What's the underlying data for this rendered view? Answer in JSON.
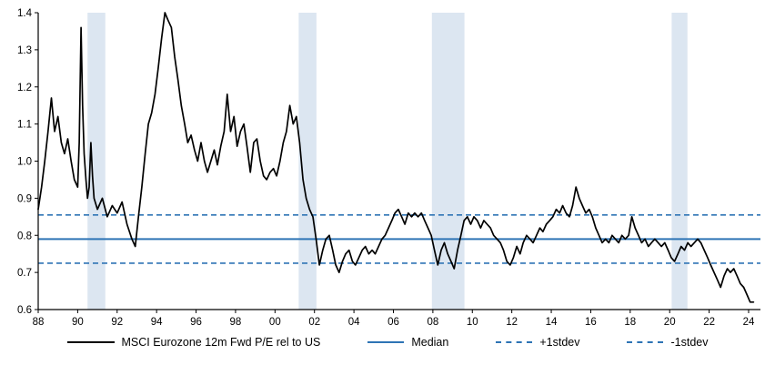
{
  "chart_data": {
    "type": "line",
    "x_range": [
      1988,
      2024.6
    ],
    "y_range": [
      0.6,
      1.4
    ],
    "x_ticks": {
      "values": [
        1988,
        1990,
        1992,
        1994,
        1996,
        1998,
        2000,
        2002,
        2004,
        2006,
        2008,
        2010,
        2012,
        2014,
        2016,
        2018,
        2020,
        2022,
        2024
      ],
      "labels": [
        "88",
        "90",
        "92",
        "94",
        "96",
        "98",
        "00",
        "02",
        "04",
        "06",
        "08",
        "10",
        "12",
        "14",
        "16",
        "18",
        "20",
        "22",
        "24"
      ]
    },
    "y_ticks": {
      "values": [
        0.6,
        0.7,
        0.8,
        0.9,
        1.0,
        1.1,
        1.2,
        1.3,
        1.4
      ],
      "labels": [
        "0.6",
        "0.7",
        "0.8",
        "0.9",
        "1.0",
        "1.1",
        "1.2",
        "1.3",
        "1.4"
      ]
    },
    "series": [
      {
        "name": "MSCI Eurozone 12m Fwd P/E rel to US",
        "color": "#000000",
        "style": "solid",
        "points": [
          [
            1988.0,
            0.87
          ],
          [
            1988.17,
            0.93
          ],
          [
            1988.33,
            1.0
          ],
          [
            1988.5,
            1.08
          ],
          [
            1988.67,
            1.17
          ],
          [
            1988.83,
            1.08
          ],
          [
            1989.0,
            1.12
          ],
          [
            1989.17,
            1.05
          ],
          [
            1989.33,
            1.02
          ],
          [
            1989.5,
            1.06
          ],
          [
            1989.67,
            1.0
          ],
          [
            1989.83,
            0.95
          ],
          [
            1990.0,
            0.93
          ],
          [
            1990.08,
            1.05
          ],
          [
            1990.17,
            1.36
          ],
          [
            1990.25,
            1.15
          ],
          [
            1990.33,
            1.02
          ],
          [
            1990.42,
            0.95
          ],
          [
            1990.5,
            0.9
          ],
          [
            1990.58,
            0.93
          ],
          [
            1990.67,
            1.05
          ],
          [
            1990.75,
            0.96
          ],
          [
            1990.83,
            0.9
          ],
          [
            1991.0,
            0.87
          ],
          [
            1991.25,
            0.9
          ],
          [
            1991.5,
            0.85
          ],
          [
            1991.75,
            0.88
          ],
          [
            1992.0,
            0.86
          ],
          [
            1992.25,
            0.89
          ],
          [
            1992.5,
            0.83
          ],
          [
            1992.75,
            0.79
          ],
          [
            1992.92,
            0.77
          ],
          [
            1993.08,
            0.85
          ],
          [
            1993.25,
            0.93
          ],
          [
            1993.42,
            1.02
          ],
          [
            1993.58,
            1.1
          ],
          [
            1993.75,
            1.13
          ],
          [
            1993.92,
            1.18
          ],
          [
            1994.08,
            1.25
          ],
          [
            1994.25,
            1.33
          ],
          [
            1994.42,
            1.4
          ],
          [
            1994.58,
            1.38
          ],
          [
            1994.75,
            1.36
          ],
          [
            1994.92,
            1.28
          ],
          [
            1995.08,
            1.22
          ],
          [
            1995.25,
            1.15
          ],
          [
            1995.42,
            1.1
          ],
          [
            1995.58,
            1.05
          ],
          [
            1995.75,
            1.07
          ],
          [
            1995.92,
            1.03
          ],
          [
            1996.08,
            1.0
          ],
          [
            1996.25,
            1.05
          ],
          [
            1996.42,
            1.0
          ],
          [
            1996.58,
            0.97
          ],
          [
            1996.75,
            1.0
          ],
          [
            1996.92,
            1.03
          ],
          [
            1997.08,
            0.99
          ],
          [
            1997.25,
            1.04
          ],
          [
            1997.42,
            1.08
          ],
          [
            1997.58,
            1.18
          ],
          [
            1997.75,
            1.08
          ],
          [
            1997.92,
            1.12
          ],
          [
            1998.08,
            1.04
          ],
          [
            1998.25,
            1.08
          ],
          [
            1998.42,
            1.1
          ],
          [
            1998.58,
            1.04
          ],
          [
            1998.75,
            0.97
          ],
          [
            1998.92,
            1.05
          ],
          [
            1999.08,
            1.06
          ],
          [
            1999.25,
            1.0
          ],
          [
            1999.42,
            0.96
          ],
          [
            1999.58,
            0.95
          ],
          [
            1999.75,
            0.97
          ],
          [
            1999.92,
            0.98
          ],
          [
            2000.08,
            0.96
          ],
          [
            2000.25,
            1.0
          ],
          [
            2000.42,
            1.05
          ],
          [
            2000.58,
            1.08
          ],
          [
            2000.75,
            1.15
          ],
          [
            2000.92,
            1.1
          ],
          [
            2001.08,
            1.12
          ],
          [
            2001.25,
            1.05
          ],
          [
            2001.42,
            0.95
          ],
          [
            2001.58,
            0.9
          ],
          [
            2001.75,
            0.87
          ],
          [
            2001.92,
            0.85
          ],
          [
            2002.08,
            0.79
          ],
          [
            2002.25,
            0.72
          ],
          [
            2002.42,
            0.76
          ],
          [
            2002.58,
            0.79
          ],
          [
            2002.75,
            0.8
          ],
          [
            2002.92,
            0.76
          ],
          [
            2003.08,
            0.72
          ],
          [
            2003.25,
            0.7
          ],
          [
            2003.42,
            0.73
          ],
          [
            2003.58,
            0.75
          ],
          [
            2003.75,
            0.76
          ],
          [
            2003.92,
            0.73
          ],
          [
            2004.08,
            0.72
          ],
          [
            2004.25,
            0.74
          ],
          [
            2004.42,
            0.76
          ],
          [
            2004.58,
            0.77
          ],
          [
            2004.75,
            0.75
          ],
          [
            2004.92,
            0.76
          ],
          [
            2005.08,
            0.75
          ],
          [
            2005.25,
            0.77
          ],
          [
            2005.42,
            0.79
          ],
          [
            2005.58,
            0.8
          ],
          [
            2005.75,
            0.82
          ],
          [
            2005.92,
            0.84
          ],
          [
            2006.08,
            0.86
          ],
          [
            2006.25,
            0.87
          ],
          [
            2006.42,
            0.85
          ],
          [
            2006.58,
            0.83
          ],
          [
            2006.75,
            0.86
          ],
          [
            2006.92,
            0.85
          ],
          [
            2007.08,
            0.86
          ],
          [
            2007.25,
            0.85
          ],
          [
            2007.42,
            0.86
          ],
          [
            2007.58,
            0.84
          ],
          [
            2007.75,
            0.82
          ],
          [
            2007.92,
            0.8
          ],
          [
            2008.08,
            0.76
          ],
          [
            2008.25,
            0.72
          ],
          [
            2008.42,
            0.76
          ],
          [
            2008.58,
            0.78
          ],
          [
            2008.75,
            0.75
          ],
          [
            2008.92,
            0.73
          ],
          [
            2009.08,
            0.71
          ],
          [
            2009.25,
            0.76
          ],
          [
            2009.42,
            0.8
          ],
          [
            2009.58,
            0.84
          ],
          [
            2009.75,
            0.85
          ],
          [
            2009.92,
            0.83
          ],
          [
            2010.08,
            0.85
          ],
          [
            2010.25,
            0.84
          ],
          [
            2010.42,
            0.82
          ],
          [
            2010.58,
            0.84
          ],
          [
            2010.75,
            0.83
          ],
          [
            2010.92,
            0.82
          ],
          [
            2011.08,
            0.8
          ],
          [
            2011.25,
            0.79
          ],
          [
            2011.42,
            0.78
          ],
          [
            2011.58,
            0.76
          ],
          [
            2011.75,
            0.73
          ],
          [
            2011.92,
            0.72
          ],
          [
            2012.08,
            0.74
          ],
          [
            2012.25,
            0.77
          ],
          [
            2012.42,
            0.75
          ],
          [
            2012.58,
            0.78
          ],
          [
            2012.75,
            0.8
          ],
          [
            2012.92,
            0.79
          ],
          [
            2013.08,
            0.78
          ],
          [
            2013.25,
            0.8
          ],
          [
            2013.42,
            0.82
          ],
          [
            2013.58,
            0.81
          ],
          [
            2013.75,
            0.83
          ],
          [
            2013.92,
            0.84
          ],
          [
            2014.08,
            0.85
          ],
          [
            2014.25,
            0.87
          ],
          [
            2014.42,
            0.86
          ],
          [
            2014.58,
            0.88
          ],
          [
            2014.75,
            0.86
          ],
          [
            2014.92,
            0.85
          ],
          [
            2015.08,
            0.88
          ],
          [
            2015.25,
            0.93
          ],
          [
            2015.42,
            0.9
          ],
          [
            2015.58,
            0.88
          ],
          [
            2015.75,
            0.86
          ],
          [
            2015.92,
            0.87
          ],
          [
            2016.08,
            0.85
          ],
          [
            2016.25,
            0.82
          ],
          [
            2016.42,
            0.8
          ],
          [
            2016.58,
            0.78
          ],
          [
            2016.75,
            0.79
          ],
          [
            2016.92,
            0.78
          ],
          [
            2017.08,
            0.8
          ],
          [
            2017.25,
            0.79
          ],
          [
            2017.42,
            0.78
          ],
          [
            2017.58,
            0.8
          ],
          [
            2017.75,
            0.79
          ],
          [
            2017.92,
            0.8
          ],
          [
            2018.08,
            0.85
          ],
          [
            2018.25,
            0.82
          ],
          [
            2018.42,
            0.8
          ],
          [
            2018.58,
            0.78
          ],
          [
            2018.75,
            0.79
          ],
          [
            2018.92,
            0.77
          ],
          [
            2019.08,
            0.78
          ],
          [
            2019.25,
            0.79
          ],
          [
            2019.42,
            0.78
          ],
          [
            2019.58,
            0.77
          ],
          [
            2019.75,
            0.78
          ],
          [
            2019.92,
            0.76
          ],
          [
            2020.08,
            0.74
          ],
          [
            2020.25,
            0.73
          ],
          [
            2020.42,
            0.75
          ],
          [
            2020.58,
            0.77
          ],
          [
            2020.75,
            0.76
          ],
          [
            2020.92,
            0.78
          ],
          [
            2021.08,
            0.77
          ],
          [
            2021.25,
            0.78
          ],
          [
            2021.42,
            0.79
          ],
          [
            2021.58,
            0.78
          ],
          [
            2021.75,
            0.76
          ],
          [
            2021.92,
            0.74
          ],
          [
            2022.08,
            0.72
          ],
          [
            2022.25,
            0.7
          ],
          [
            2022.42,
            0.68
          ],
          [
            2022.58,
            0.66
          ],
          [
            2022.75,
            0.69
          ],
          [
            2022.92,
            0.71
          ],
          [
            2023.08,
            0.7
          ],
          [
            2023.25,
            0.71
          ],
          [
            2023.42,
            0.69
          ],
          [
            2023.58,
            0.67
          ],
          [
            2023.75,
            0.66
          ],
          [
            2023.92,
            0.64
          ],
          [
            2024.08,
            0.62
          ],
          [
            2024.25,
            0.62
          ]
        ]
      }
    ],
    "reference_lines": [
      {
        "name": "Median",
        "value": 0.79,
        "color": "#2E74B5",
        "style": "solid"
      },
      {
        "name": "+1stdev",
        "value": 0.855,
        "color": "#2E74B5",
        "style": "dashed"
      },
      {
        "name": "-1stdev",
        "value": 0.725,
        "color": "#2E74B5",
        "style": "dashed"
      }
    ],
    "shaded_bands": {
      "color": "#DCE6F1",
      "ranges": [
        [
          1990.5,
          1991.4
        ],
        [
          2001.2,
          2002.1
        ],
        [
          2007.95,
          2009.6
        ],
        [
          2020.1,
          2020.9
        ]
      ]
    },
    "legend": [
      {
        "label": "MSCI Eurozone 12m Fwd P/E rel to US",
        "color": "#000000",
        "style": "solid"
      },
      {
        "label": "Median",
        "color": "#2E74B5",
        "style": "solid"
      },
      {
        "label": "+1stdev",
        "color": "#2E74B5",
        "style": "dashed"
      },
      {
        "label": "-1stdev",
        "color": "#2E74B5",
        "style": "dashed"
      }
    ],
    "legend_position": "bottom",
    "grid": false
  }
}
